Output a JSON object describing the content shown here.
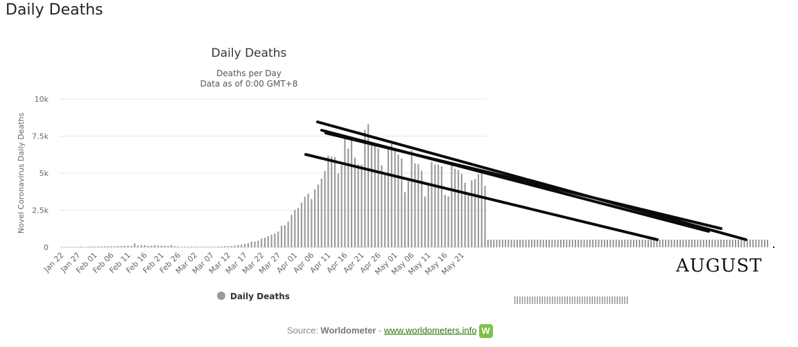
{
  "page": {
    "heading": "Daily Deaths"
  },
  "chart_data": {
    "type": "bar",
    "title": "Daily Deaths",
    "subtitle_line1": "Deaths per Day",
    "subtitle_line2": "Data as of 0:00 GMT+8",
    "ylabel": "Novel Coronavirus Daily Deaths",
    "ylim": [
      0,
      10000
    ],
    "yticks": [
      0,
      2500,
      5000,
      7500,
      10000
    ],
    "ytick_labels": [
      "0",
      "2.5k",
      "5k",
      "7.5k",
      "10k"
    ],
    "xtick_labels": [
      "Jan 22",
      "Jan 27",
      "Feb 01",
      "Feb 06",
      "Feb 11",
      "Feb 16",
      "Feb 21",
      "Feb 26",
      "Mar 02",
      "Mar 07",
      "Mar 12",
      "Mar 17",
      "Mar 22",
      "Mar 27",
      "Apr 01",
      "Apr 06",
      "Apr 11",
      "Apr 16",
      "Apr 21",
      "Apr 26",
      "May 01",
      "May 06",
      "May 11",
      "May 16",
      "May 21"
    ],
    "legend": {
      "position": "bottom",
      "entries": [
        "Daily Deaths"
      ]
    },
    "series_color": "#9a9a9a",
    "values": [
      17,
      0,
      8,
      16,
      14,
      26,
      49,
      2,
      38,
      43,
      46,
      45,
      57,
      64,
      66,
      73,
      73,
      86,
      89,
      97,
      108,
      97,
      254,
      121,
      143,
      146,
      106,
      98,
      136,
      115,
      118,
      109,
      97,
      150,
      71,
      52,
      29,
      44,
      37,
      35,
      42,
      31,
      38,
      31,
      30,
      28,
      27,
      46,
      55,
      73,
      67,
      88,
      113,
      147,
      181,
      226,
      282,
      375,
      388,
      444,
      588,
      637,
      745,
      838,
      926,
      1063,
      1443,
      1498,
      1729,
      2190,
      2525,
      2648,
      3014,
      3414,
      3617,
      3257,
      3912,
      4235,
      4639,
      5149,
      6176,
      6119,
      6082,
      4975,
      5554,
      7589,
      6664,
      7294,
      6041,
      5601,
      5583,
      7928,
      8299,
      7052,
      6959,
      6670,
      5531,
      4879,
      6814,
      6967,
      6601,
      6259,
      5982,
      3716,
      4472,
      6541,
      5658,
      5603,
      5169,
      3432,
      4217,
      5762,
      5584,
      5577,
      5452,
      3534,
      3441,
      5568,
      5288,
      5201,
      4945,
      4347,
      3640,
      4514,
      4611,
      4930,
      5053,
      4145
    ],
    "annotation_text": "AUGUST"
  },
  "source": {
    "prefix": "Source: ",
    "name": "Worldometer",
    "separator": " - ",
    "link_text": "www.worldometers.info",
    "logo_text": "W"
  }
}
